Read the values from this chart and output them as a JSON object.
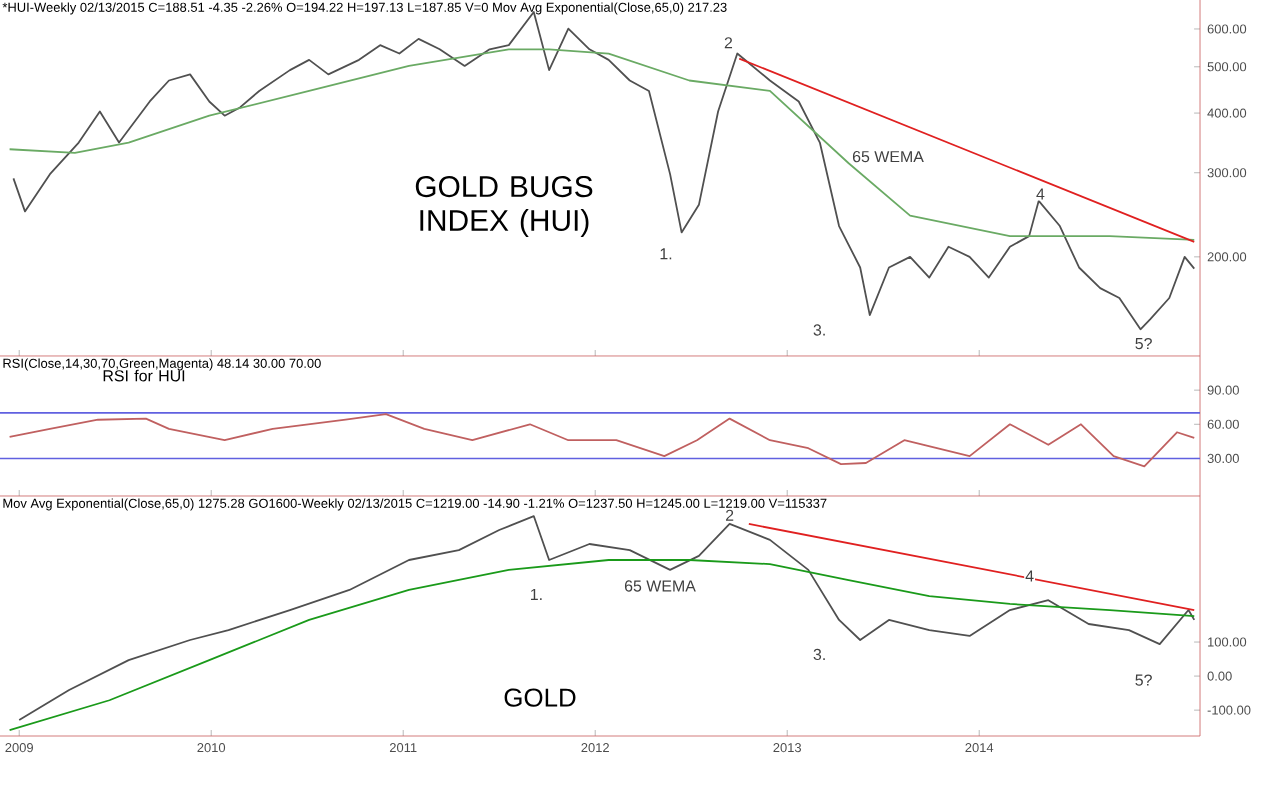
{
  "chart_data": [
    {
      "type": "line",
      "title": "GOLD BUGS INDEX (HUI)",
      "subtitle": "*HUI-Weekly 02/13/2015 C=188.51 -4.35 -2.26% O=194.22 H=197.13 L=187.85 V=0 Mov Avg Exponential(Close,65,0) 217.23",
      "log": "y",
      "tick_labels": "y",
      "xlim": [
        2008.9,
        2015.15
      ],
      "xticks": [
        2009,
        2010,
        2011,
        2012,
        2013,
        2014
      ],
      "ylim": [
        124,
        690
      ],
      "yticks": [
        {
          "value": 200,
          "label": "200.00"
        },
        {
          "value": 300,
          "label": "300.00"
        },
        {
          "value": 400,
          "label": "400.00"
        },
        {
          "value": 500,
          "label": "500.00"
        },
        {
          "value": 600,
          "label": "600.00"
        }
      ],
      "series": [
        {
          "color": "#505050",
          "x": [
            2008.97,
            2009.03,
            2009.16,
            2009.31,
            2009.42,
            2009.52,
            2009.68,
            2009.78,
            2009.89,
            2009.99,
            2010.07,
            2010.15,
            2010.25,
            2010.41,
            2010.51,
            2010.61,
            2010.77,
            2010.88,
            2010.98,
            2011.08,
            2011.19,
            2011.32,
            2011.45,
            2011.55,
            2011.68,
            2011.76,
            2011.86,
            2011.97,
            2012.07,
            2012.18,
            2012.28,
            2012.39,
            2012.45,
            2012.54,
            2012.64,
            2012.74,
            2012.91,
            2013.06,
            2013.17,
            2013.27,
            2013.38,
            2013.43,
            2013.53,
            2013.64,
            2013.74,
            2013.84,
            2013.95,
            2014.05,
            2014.16,
            2014.26,
            2014.31,
            2014.42,
            2014.52,
            2014.63,
            2014.73,
            2014.84,
            2014.89,
            2014.99,
            2015.07,
            2015.12
          ],
          "values": [
            292,
            249,
            298,
            347,
            403,
            347,
            423,
            468,
            482,
            423,
            395,
            411,
            445,
            492,
            517,
            482,
            517,
            555,
            533,
            572,
            544,
            502,
            544,
            555,
            651,
            492,
            601,
            544,
            517,
            468,
            445,
            298,
            225,
            257,
            403,
            533,
            468,
            423,
            347,
            232,
            190,
            151,
            190,
            200,
            181,
            210,
            200,
            181,
            210,
            221,
            262,
            232,
            190,
            172,
            164,
            141,
            148,
            164,
            200,
            189
          ]
        },
        {
          "color": "#6aaa64",
          "x": [
            2008.95,
            2009.29,
            2009.57,
            2009.99,
            2010.51,
            2011.03,
            2011.55,
            2011.76,
            2012.07,
            2012.49,
            2012.91,
            2013.32,
            2013.64,
            2014.16,
            2014.68,
            2015.12
          ],
          "values": [
            336,
            330,
            347,
            395,
            445,
            502,
            544,
            544,
            533,
            468,
            445,
            314,
            244,
            221,
            221,
            217
          ]
        },
        {
          "color": "#e02020",
          "x": [
            2012.75,
            2015.12
          ],
          "values": [
            520,
            215
          ]
        }
      ],
      "annotations": [
        "2",
        "1.",
        "65 WEMA",
        "3.",
        "4",
        "5?"
      ]
    },
    {
      "type": "line",
      "title": "RSI for HUI",
      "subtitle": "RSI(Close,14,30,70,Green,Magenta) 48.14 30.00 70.00",
      "tick_labels": "y",
      "xlim": [
        2008.9,
        2015.15
      ],
      "xticks": [
        2009,
        2010,
        2011,
        2012,
        2013,
        2014
      ],
      "ylim": [
        -3,
        120
      ],
      "yticks": [
        {
          "value": 30,
          "label": "30.00"
        },
        {
          "value": 60,
          "label": "60.00"
        },
        {
          "value": 90,
          "label": "90.00"
        }
      ],
      "series": [
        {
          "color": "#c06060",
          "x": [
            2008.95,
            2009.16,
            2009.41,
            2009.66,
            2009.78,
            2010.07,
            2010.32,
            2010.7,
            2010.91,
            2011.11,
            2011.36,
            2011.66,
            2011.86,
            2012.11,
            2012.36,
            2012.53,
            2012.7,
            2012.91,
            2013.11,
            2013.28,
            2013.41,
            2013.61,
            2013.78,
            2013.95,
            2014.16,
            2014.36,
            2014.53,
            2014.7,
            2014.86,
            2015.03,
            2015.12
          ],
          "values": [
            49,
            56,
            64,
            65,
            56,
            46,
            56,
            64,
            69,
            56,
            46,
            60,
            46,
            46,
            32,
            46,
            65,
            46,
            39,
            25,
            26,
            46,
            39,
            32,
            60,
            42,
            60,
            32,
            23,
            53,
            48
          ]
        }
      ],
      "ref_lines": [
        {
          "axis": "y",
          "value": 30,
          "color": "#6060e0"
        },
        {
          "axis": "y",
          "value": 70,
          "color": "#6060e0"
        }
      ]
    },
    {
      "type": "line",
      "title": "GOLD",
      "subtitle": "Mov Avg Exponential(Close,65,0) 1275.28 GO1600-Weekly 02/13/2015 C=1219.00 -14.90 -1.21% O=1237.50 H=1245.00 L=1219.00 V=115337",
      "xlim": [
        2008.9,
        2015.15
      ],
      "xticks": [
        2009,
        2010,
        2011,
        2012,
        2013,
        2014
      ],
      "ylim": [
        -176,
        529
      ],
      "yticks": [
        {
          "value": -100,
          "label": "-100.00"
        },
        {
          "value": 0,
          "label": "0.00"
        },
        {
          "value": 100,
          "label": "100.00"
        }
      ],
      "series": [
        {
          "color": "#505050",
          "x": [
            2009.0,
            2009.26,
            2009.57,
            2009.89,
            2010.09,
            2010.41,
            2010.72,
            2011.03,
            2011.29,
            2011.5,
            2011.68,
            2011.76,
            2011.97,
            2012.18,
            2012.39,
            2012.54,
            2012.7,
            2012.91,
            2013.11,
            2013.27,
            2013.38,
            2013.53,
            2013.74,
            2013.95,
            2014.16,
            2014.36,
            2014.57,
            2014.78,
            2014.94,
            2015.09,
            2015.12
          ],
          "values": [
            -129,
            -41,
            47,
            106,
            135,
            194,
            253,
            341,
            370,
            429,
            470,
            341,
            388,
            370,
            312,
            353,
            447,
            400,
            312,
            165,
            106,
            165,
            135,
            118,
            194,
            223,
            153,
            135,
            94,
            194,
            165
          ]
        },
        {
          "color": "#1a9a1a",
          "x": [
            2008.95,
            2009.47,
            2009.99,
            2010.51,
            2011.03,
            2011.55,
            2012.07,
            2012.49,
            2012.91,
            2013.32,
            2013.74,
            2014.16,
            2014.68,
            2015.12
          ],
          "values": [
            -159,
            -71,
            47,
            165,
            253,
            312,
            341,
            341,
            329,
            282,
            235,
            212,
            194,
            176
          ]
        },
        {
          "color": "#e02020",
          "x": [
            2012.8,
            2015.12
          ],
          "values": [
            447,
            194
          ]
        }
      ],
      "annotations": [
        "2",
        "65 WEMA",
        "1.",
        "3.",
        "4",
        "5?"
      ]
    }
  ]
}
